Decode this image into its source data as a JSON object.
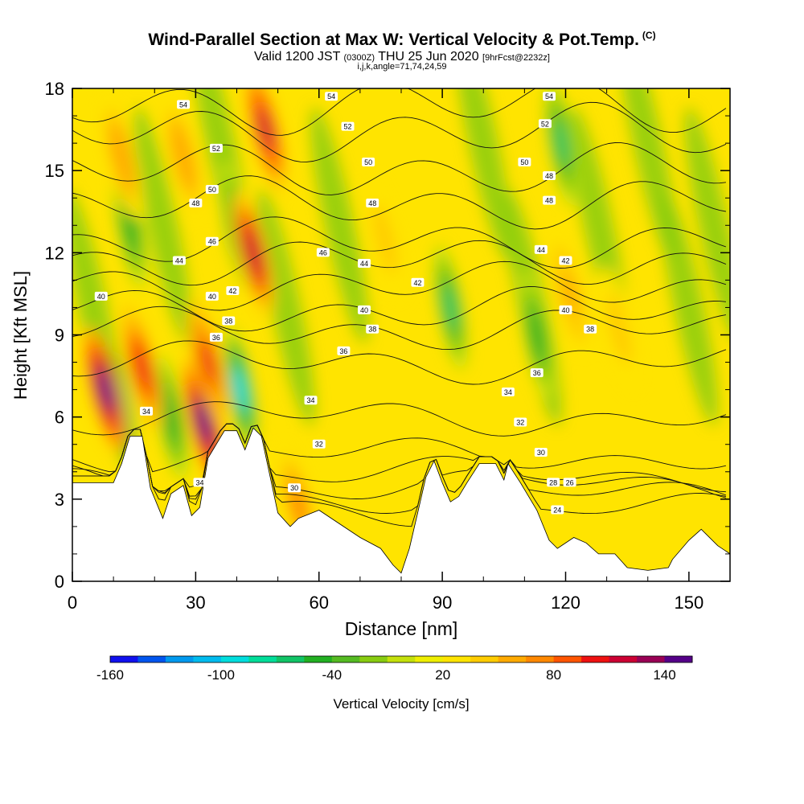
{
  "header": {
    "title": "Wind-Parallel Section at Max W: Vertical Velocity & Pot.Temp.",
    "title_mark": "(C)",
    "subtitle_valid": "Valid 1200 JST",
    "subtitle_utc": "(0300Z)",
    "subtitle_date": "THU 25 Jun 2020",
    "subtitle_fcst": "[9hrFcst@2232z]",
    "subnote": "i,j,k,angle=71,74,24,59"
  },
  "chart_data": {
    "type": "heatmap",
    "title": "Wind-Parallel Section at Max W: Vertical Velocity & Pot.Temp.",
    "xlabel": "Distance [nm]",
    "ylabel": "Height [Kft MSL]",
    "xlim": [
      0,
      160
    ],
    "ylim": [
      0,
      18
    ],
    "x_ticks": [
      0,
      30,
      60,
      90,
      120,
      150
    ],
    "y_ticks": [
      0,
      3,
      6,
      9,
      12,
      15,
      18
    ],
    "colorbar": {
      "label": "Vertical Velocity [cm/s]",
      "tick_values": [
        -160,
        -100,
        -40,
        20,
        80,
        140
      ],
      "levels": [
        -160,
        -145,
        -130,
        -115,
        -100,
        -85,
        -70,
        -55,
        -40,
        -25,
        -10,
        5,
        20,
        35,
        50,
        65,
        80,
        95,
        110,
        125,
        140,
        155
      ],
      "colors": [
        "#1010ee",
        "#0055ee",
        "#0099ee",
        "#00bbee",
        "#00dddd",
        "#00dd99",
        "#11c466",
        "#22b022",
        "#55bb22",
        "#88cc11",
        "#c4e00c",
        "#eeee00",
        "#ffe400",
        "#ffcc00",
        "#ffaa00",
        "#ff8800",
        "#ff5500",
        "#ee1111",
        "#cc0033",
        "#990055",
        "#550088"
      ]
    },
    "terrain": [
      [
        0,
        3.6
      ],
      [
        10,
        3.6
      ],
      [
        12,
        4.3
      ],
      [
        14,
        5.3
      ],
      [
        17,
        5.3
      ],
      [
        19,
        3.4
      ],
      [
        22,
        2.3
      ],
      [
        24,
        3.2
      ],
      [
        27,
        3.5
      ],
      [
        29,
        2.4
      ],
      [
        31,
        2.7
      ],
      [
        33,
        4.5
      ],
      [
        37,
        5.5
      ],
      [
        40,
        5.5
      ],
      [
        42,
        4.8
      ],
      [
        44,
        5.6
      ],
      [
        46,
        5.3
      ],
      [
        48,
        3.9
      ],
      [
        50,
        2.5
      ],
      [
        53,
        2.0
      ],
      [
        55,
        2.3
      ],
      [
        60,
        2.6
      ],
      [
        65,
        2.1
      ],
      [
        70,
        1.6
      ],
      [
        75,
        1.2
      ],
      [
        78,
        0.6
      ],
      [
        80,
        0.3
      ],
      [
        82,
        1.2
      ],
      [
        84,
        2.5
      ],
      [
        86,
        3.8
      ],
      [
        88,
        4.4
      ],
      [
        90,
        3.6
      ],
      [
        92,
        2.9
      ],
      [
        94,
        3.1
      ],
      [
        96,
        3.6
      ],
      [
        99,
        4.3
      ],
      [
        103,
        4.3
      ],
      [
        105,
        3.7
      ],
      [
        106,
        4.3
      ],
      [
        109,
        3.6
      ],
      [
        113,
        2.6
      ],
      [
        116,
        1.5
      ],
      [
        118,
        1.2
      ],
      [
        122,
        1.6
      ],
      [
        125,
        1.4
      ],
      [
        128,
        1.0
      ],
      [
        132,
        1.0
      ],
      [
        135,
        0.5
      ],
      [
        140,
        0.4
      ],
      [
        145,
        0.5
      ],
      [
        146,
        0.8
      ],
      [
        150,
        1.5
      ],
      [
        153,
        1.9
      ],
      [
        157,
        1.3
      ],
      [
        160,
        1.0
      ]
    ],
    "updrafts": [
      {
        "x": 8,
        "y": 7.0,
        "w": 140
      },
      {
        "x": 17,
        "y": 7.8,
        "w": 105
      },
      {
        "x": 32,
        "y": 5.8,
        "w": 155
      },
      {
        "x": 33,
        "y": 8.0,
        "w": 95
      },
      {
        "x": 44,
        "y": 12.0,
        "w": 120
      },
      {
        "x": 47,
        "y": 16.5,
        "w": 110
      },
      {
        "x": 12,
        "y": 15.5,
        "w": 60
      },
      {
        "x": 27,
        "y": 15.5,
        "w": 60
      },
      {
        "x": 76,
        "y": 12.5,
        "w": 45
      },
      {
        "x": 121,
        "y": 10.5,
        "w": 55
      },
      {
        "x": 133,
        "y": 9.2,
        "w": 45
      },
      {
        "x": 55,
        "y": 2.8,
        "w": 65
      }
    ],
    "downdrafts": [
      {
        "x": 11,
        "y": 6.5,
        "w": -120
      },
      {
        "x": 14,
        "y": 13.0,
        "w": -55
      },
      {
        "x": 41,
        "y": 7.0,
        "w": -100
      },
      {
        "x": 40,
        "y": 13.0,
        "w": -50
      },
      {
        "x": 92,
        "y": 10.0,
        "w": -60
      },
      {
        "x": 113,
        "y": 9.0,
        "w": -55
      },
      {
        "x": 119,
        "y": 16.0,
        "w": -60
      },
      {
        "x": 24,
        "y": 6.0,
        "w": -55
      }
    ],
    "isentropes": [
      {
        "theta": 24,
        "y": 2.6
      },
      {
        "theta": 26,
        "y": 3.1
      },
      {
        "theta": 28,
        "y": 3.5
      },
      {
        "theta": 30,
        "y": 3.9
      },
      {
        "theta": 32,
        "y": 4.6
      },
      {
        "theta": 34,
        "y": 6.0
      },
      {
        "theta": 36,
        "y": 8.0
      },
      {
        "theta": 38,
        "y": 9.2
      },
      {
        "theta": 40,
        "y": 9.9
      },
      {
        "theta": 42,
        "y": 10.8
      },
      {
        "theta": 44,
        "y": 11.7
      },
      {
        "theta": 46,
        "y": 12.4
      },
      {
        "theta": 48,
        "y": 13.8
      },
      {
        "theta": 50,
        "y": 15.0
      },
      {
        "theta": 52,
        "y": 16.4
      },
      {
        "theta": 54,
        "y": 17.4
      }
    ],
    "isentrope_labels": [
      {
        "text": "54",
        "x": 27,
        "y": 17.4
      },
      {
        "text": "54",
        "x": 63,
        "y": 17.7
      },
      {
        "text": "54",
        "x": 116,
        "y": 17.7
      },
      {
        "text": "52",
        "x": 35,
        "y": 15.8
      },
      {
        "text": "52",
        "x": 67,
        "y": 16.6
      },
      {
        "text": "52",
        "x": 115,
        "y": 16.7
      },
      {
        "text": "50",
        "x": 34,
        "y": 14.3
      },
      {
        "text": "50",
        "x": 72,
        "y": 15.3
      },
      {
        "text": "50",
        "x": 110,
        "y": 15.3
      },
      {
        "text": "48",
        "x": 30,
        "y": 13.8
      },
      {
        "text": "48",
        "x": 73,
        "y": 13.8
      },
      {
        "text": "48",
        "x": 116,
        "y": 14.8
      },
      {
        "text": "48",
        "x": 116,
        "y": 13.9
      },
      {
        "text": "46",
        "x": 34,
        "y": 12.4
      },
      {
        "text": "46",
        "x": 61,
        "y": 12.0
      },
      {
        "text": "44",
        "x": 26,
        "y": 11.7
      },
      {
        "text": "44",
        "x": 71,
        "y": 11.6
      },
      {
        "text": "44",
        "x": 114,
        "y": 12.1
      },
      {
        "text": "42",
        "x": 39,
        "y": 10.6
      },
      {
        "text": "42",
        "x": 84,
        "y": 10.9
      },
      {
        "text": "42",
        "x": 120,
        "y": 11.7
      },
      {
        "text": "40",
        "x": 7,
        "y": 10.4
      },
      {
        "text": "40",
        "x": 34,
        "y": 10.4
      },
      {
        "text": "40",
        "x": 71,
        "y": 9.9
      },
      {
        "text": "40",
        "x": 120,
        "y": 9.9
      },
      {
        "text": "38",
        "x": 38,
        "y": 9.5
      },
      {
        "text": "38",
        "x": 73,
        "y": 9.2
      },
      {
        "text": "38",
        "x": 126,
        "y": 9.2
      },
      {
        "text": "36",
        "x": 35,
        "y": 8.9
      },
      {
        "text": "36",
        "x": 66,
        "y": 8.4
      },
      {
        "text": "36",
        "x": 113,
        "y": 7.6
      },
      {
        "text": "34",
        "x": 18,
        "y": 6.2
      },
      {
        "text": "34",
        "x": 58,
        "y": 6.6
      },
      {
        "text": "34",
        "x": 106,
        "y": 6.9
      },
      {
        "text": "32",
        "x": 60,
        "y": 5.0
      },
      {
        "text": "32",
        "x": 109,
        "y": 5.8
      },
      {
        "text": "30",
        "x": 54,
        "y": 3.4
      },
      {
        "text": "30",
        "x": 114,
        "y": 4.7
      },
      {
        "text": "28",
        "x": 117,
        "y": 3.6
      },
      {
        "text": "26",
        "x": 121,
        "y": 3.6
      },
      {
        "text": "24",
        "x": 118,
        "y": 2.6
      },
      {
        "text": "34",
        "x": 31,
        "y": 3.6
      }
    ]
  }
}
